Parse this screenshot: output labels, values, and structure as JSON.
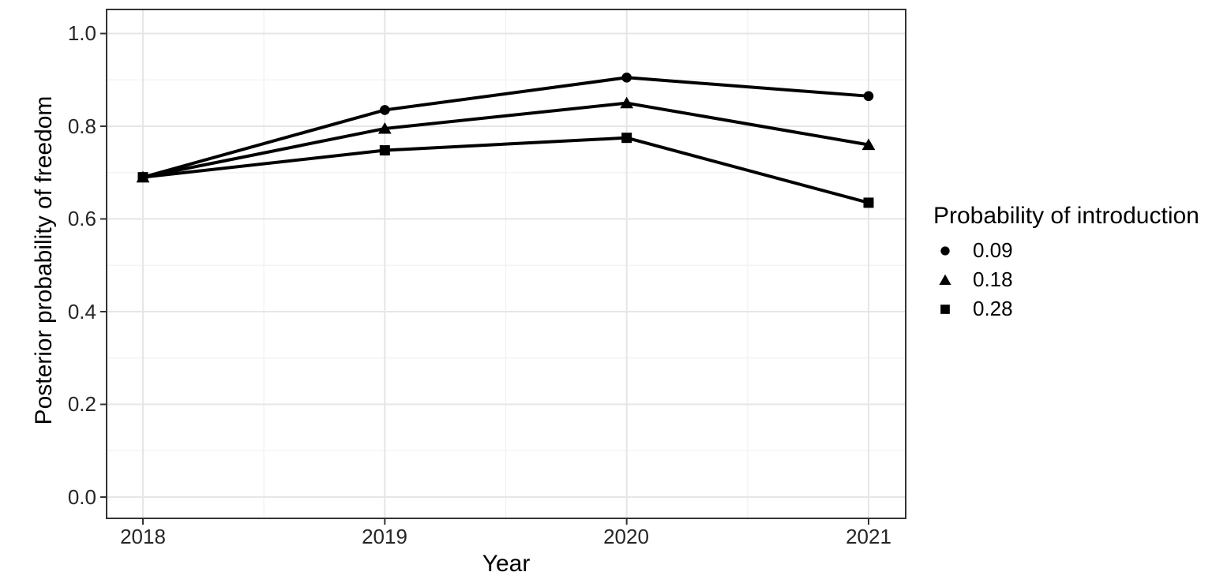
{
  "chart_data": {
    "type": "line",
    "title": "",
    "xlabel": "Year",
    "ylabel": "Posterior probability of freedom",
    "x": [
      2018,
      2019,
      2020,
      2021
    ],
    "x_tick_labels": [
      "2018",
      "2019",
      "2020",
      "2021"
    ],
    "y_ticks": [
      0.0,
      0.2,
      0.4,
      0.6,
      0.8,
      1.0
    ],
    "y_tick_labels_top_to_bottom": [
      "1.0",
      "0.8",
      "0.6",
      "0.4",
      "0.2",
      "0.0"
    ],
    "ylim": [
      0.0,
      1.0
    ],
    "grid": {
      "major": true,
      "minor": true,
      "style": "light gray on white, dark panel border"
    },
    "legend": {
      "position": "right",
      "title": "Probability of introduction",
      "entries": [
        {
          "label": "0.09",
          "marker": "circle"
        },
        {
          "label": "0.18",
          "marker": "triangle"
        },
        {
          "label": "0.28",
          "marker": "square"
        }
      ]
    },
    "series": [
      {
        "name": "0.09",
        "marker": "circle",
        "color": "#000000",
        "values": [
          0.69,
          0.835,
          0.905,
          0.865
        ]
      },
      {
        "name": "0.18",
        "marker": "triangle",
        "color": "#000000",
        "values": [
          0.69,
          0.795,
          0.85,
          0.76
        ]
      },
      {
        "name": "0.28",
        "marker": "square",
        "color": "#000000",
        "values": [
          0.69,
          0.748,
          0.775,
          0.635
        ]
      }
    ],
    "colors": {
      "line": "#000000",
      "marker": "#000000",
      "panel_border": "#333333",
      "grid_major": "#e6e6e6",
      "grid_minor": "#f2f2f2",
      "background": "#ffffff",
      "axis_text": "#262626",
      "axis_title": "#000000",
      "tick_mark": "#333333"
    }
  }
}
